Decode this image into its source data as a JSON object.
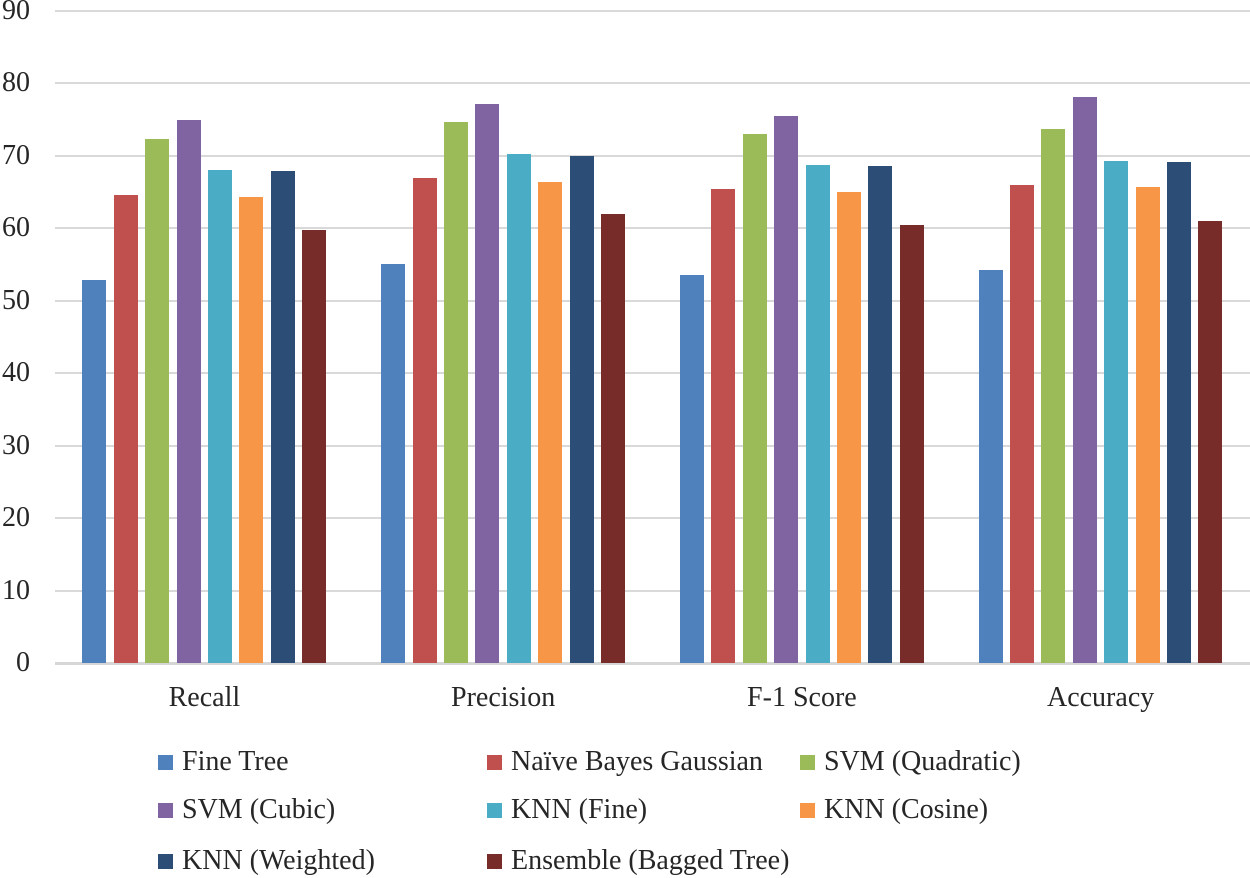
{
  "figure": {
    "background_color": "#FFFFFF",
    "text_color": "#262626",
    "gridline_color": "#D9D9D9",
    "axisline_color": "#D6D6D6"
  },
  "chart_data": {
    "type": "bar",
    "title": "",
    "xlabel": "",
    "ylabel": "",
    "categories": [
      "Recall",
      "Precision",
      "F-1 Score",
      "Accuracy"
    ],
    "series": [
      {
        "name": "Fine Tree",
        "color": "#4F81BD",
        "values": [
          52.8,
          55.1,
          53.5,
          54.2
        ]
      },
      {
        "name": "Naïve Bayes Gaussian",
        "color": "#C0504D",
        "values": [
          64.6,
          66.9,
          65.4,
          66.0
        ]
      },
      {
        "name": "SVM (Quadratic)",
        "color": "#9BBB59",
        "values": [
          72.3,
          74.6,
          73.0,
          73.6
        ]
      },
      {
        "name": "SVM (Cubic)",
        "color": "#8064A2",
        "values": [
          74.9,
          77.1,
          75.5,
          78.1
        ]
      },
      {
        "name": "KNN (Fine)",
        "color": "#4BACC6",
        "values": [
          68.0,
          70.2,
          68.7,
          69.3
        ]
      },
      {
        "name": "KNN (Cosine)",
        "color": "#F79646",
        "values": [
          64.3,
          66.4,
          65.0,
          65.6
        ]
      },
      {
        "name": "KNN (Weighted)",
        "color": "#2C4D75",
        "values": [
          67.9,
          70.0,
          68.5,
          69.1
        ]
      },
      {
        "name": "Ensemble (Bagged Tree)",
        "color": "#772C2A",
        "values": [
          59.7,
          61.9,
          60.4,
          60.9
        ]
      }
    ],
    "ylim": [
      0,
      90
    ],
    "yticks": [
      0,
      10,
      20,
      30,
      40,
      50,
      60,
      70,
      80,
      90
    ],
    "grid": true,
    "legend_position": "bottom",
    "legend_columns": 3
  }
}
